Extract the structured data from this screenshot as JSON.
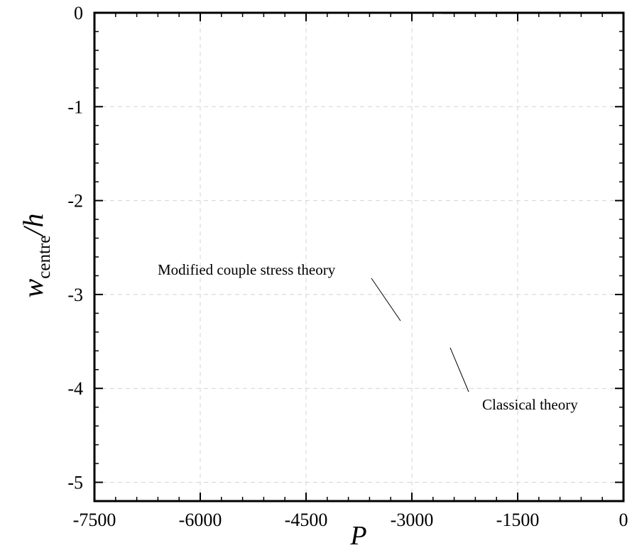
{
  "chart_data": {
    "type": "line",
    "xlabel": "P",
    "ylabel": {
      "main": "w",
      "subscript": "centre",
      "suffix": "/h"
    },
    "xlim": [
      -7500,
      0
    ],
    "ylim": [
      -5.2,
      0
    ],
    "xticks": [
      -7500,
      -6000,
      -4500,
      -3000,
      -1500,
      0
    ],
    "xtick_labels": [
      "-7500",
      "-6000",
      "-4500",
      "-3000",
      "-1500",
      "0"
    ],
    "yticks": [
      0,
      -1,
      -2,
      -3,
      -4,
      -5
    ],
    "ytick_labels": [
      "0",
      "-1",
      "-2",
      "-3",
      "-4",
      "-5"
    ],
    "grid": true,
    "colors": {
      "modified": "#3a3a3a",
      "classical": "#4a4ab8",
      "grid": "#d4d4d4"
    },
    "series": [
      {
        "name": "Modified couple stress theory",
        "color": "#3a3a3a",
        "x": [
          0,
          -500,
          -1000,
          -1500,
          -2000,
          -2300,
          -2450,
          -2530,
          -2560,
          -2565,
          -2560,
          -2545,
          -2530,
          -2515,
          -2500,
          -2480,
          -2460,
          -2400,
          -2300,
          -2200,
          -2000,
          -1750,
          -1500,
          -1250,
          -1000,
          -750,
          -500,
          -250,
          0
        ],
        "y": [
          0,
          0,
          0,
          0,
          0,
          0,
          0,
          0,
          0,
          0,
          0,
          0,
          0,
          0,
          0,
          0,
          0,
          0,
          0,
          0,
          0,
          0,
          0,
          0,
          0,
          0,
          0,
          0,
          0
        ]
      }
    ],
    "annotations": [
      {
        "text": "Modified couple stress theory",
        "target": [
          -3200,
          -3.3
        ]
      },
      {
        "text": "Classical theory",
        "target": [
          -2200,
          -3.6
        ]
      }
    ]
  }
}
